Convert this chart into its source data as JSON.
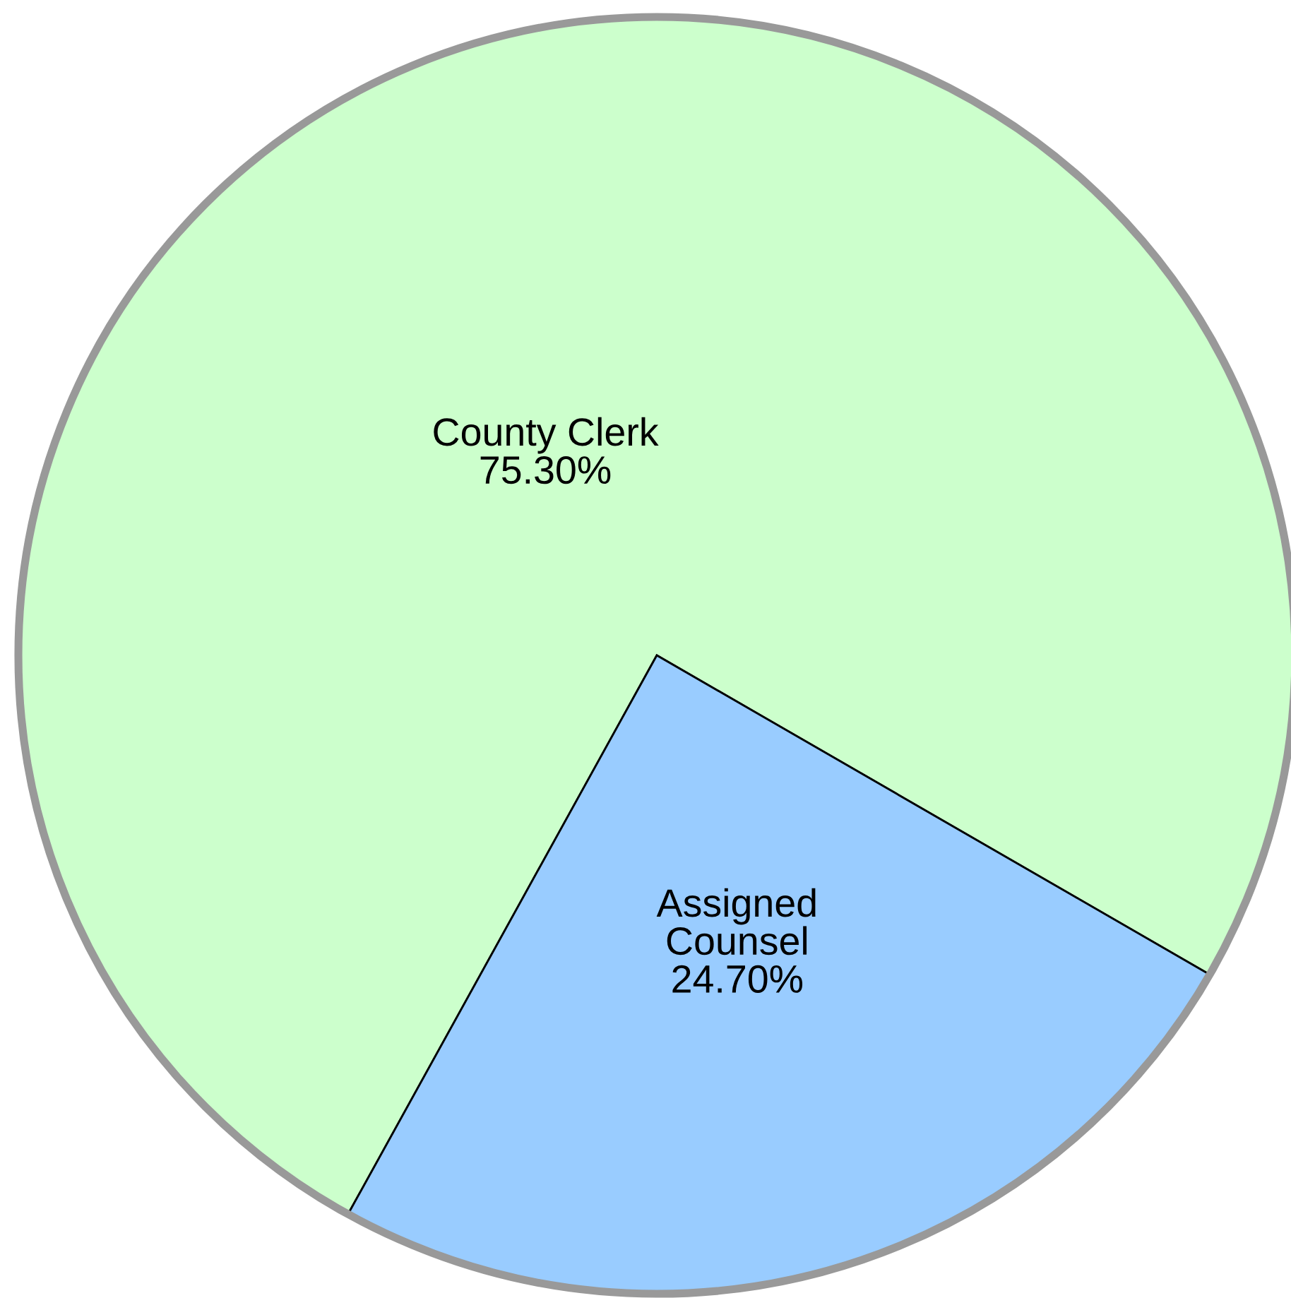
{
  "chart_data": {
    "type": "pie",
    "categories": [
      "County Clerk",
      "Assigned Counsel"
    ],
    "values": [
      75.3,
      24.7
    ],
    "colors": [
      "#ccffcc",
      "#99ccff"
    ],
    "value_labels": [
      "75.30%",
      "24.70%"
    ]
  }
}
